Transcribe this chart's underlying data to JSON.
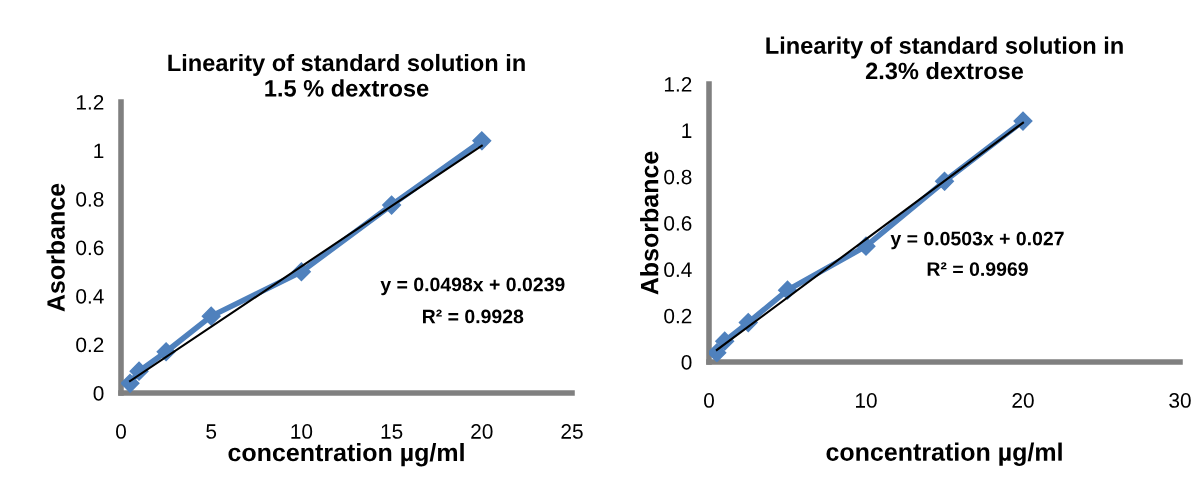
{
  "chart_data": [
    {
      "type": "line",
      "title": "Linearity of standard solution in\n1.5 % dextrose",
      "xlabel": "concentration µg/ml",
      "ylabel": "Asorbance",
      "series": [
        {
          "color": "#4f81bd",
          "x": [
            0.5,
            1,
            2.5,
            5,
            10,
            15,
            20
          ],
          "values": [
            0.04,
            0.09,
            0.17,
            0.317,
            0.5,
            0.775,
            1.04
          ],
          "marker": "diamond"
        },
        {
          "type": "line",
          "color": "#000000",
          "x": [
            0.5,
            20
          ],
          "values": [
            0.049,
            1.02
          ],
          "marker": "none"
        }
      ],
      "annotations": [
        "y = 0.0498x + 0.0239",
        "R² = 0.9928"
      ],
      "xlim": [
        0,
        25
      ],
      "xticks": [
        0,
        5,
        10,
        15,
        20,
        25
      ],
      "ylim": [
        0,
        1.2
      ],
      "yticks": [
        0,
        0.2,
        0.4,
        0.6,
        0.8,
        1,
        1.2
      ],
      "grid": false,
      "legend": false
    },
    {
      "type": "line",
      "title": "Linearity of standard solution in\n2.3% dextrose",
      "xlabel": "concentration µg/ml",
      "ylabel": "Absorbance",
      "series": [
        {
          "color": "#4f81bd",
          "x": [
            0.5,
            1,
            2.5,
            5,
            10,
            15,
            20
          ],
          "values": [
            0.04,
            0.09,
            0.17,
            0.31,
            0.5,
            0.78,
            1.04
          ],
          "marker": "diamond"
        },
        {
          "type": "line",
          "color": "#000000",
          "x": [
            0.5,
            20
          ],
          "values": [
            0.052,
            1.033
          ],
          "marker": "none"
        }
      ],
      "annotations": [
        "y = 0.0503x + 0.027",
        "R² = 0.9969"
      ],
      "xlim": [
        0,
        30
      ],
      "xticks": [
        0,
        10,
        20,
        30
      ],
      "ylim": [
        0,
        1.2
      ],
      "yticks": [
        0,
        0.2,
        0.4,
        0.6,
        0.8,
        1,
        1.2
      ],
      "grid": false,
      "legend": false
    }
  ]
}
